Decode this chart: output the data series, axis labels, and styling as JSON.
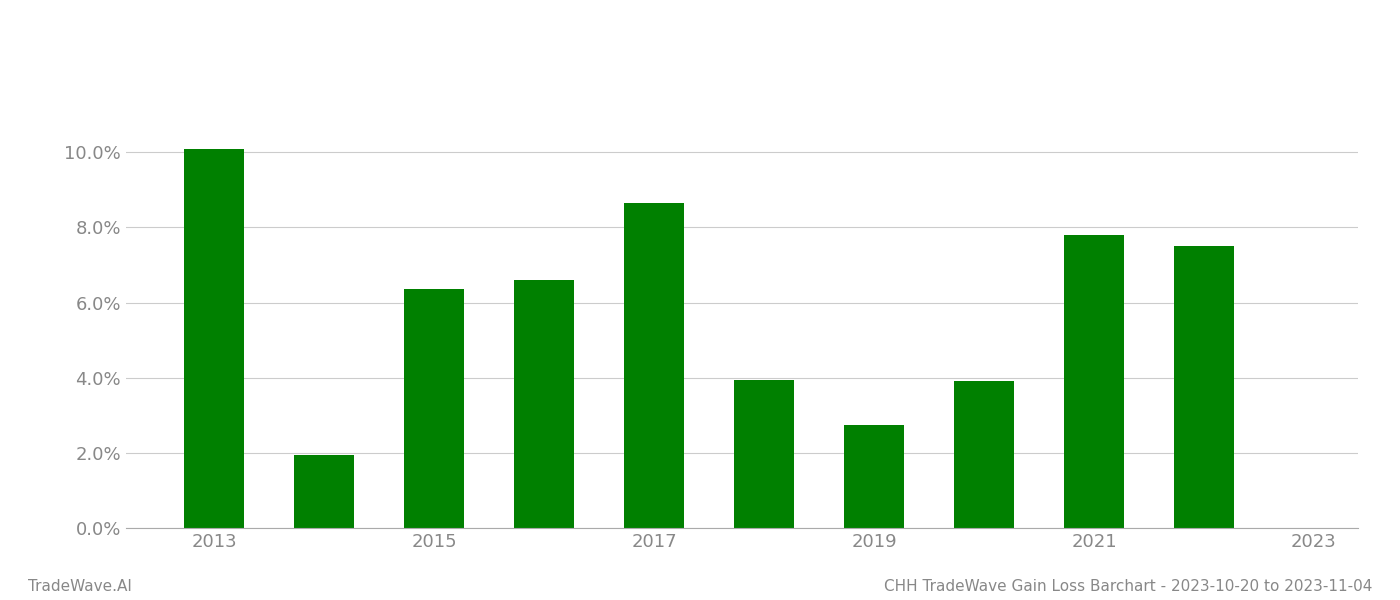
{
  "years": [
    2013,
    2014,
    2015,
    2016,
    2017,
    2018,
    2019,
    2020,
    2021,
    2022
  ],
  "values": [
    0.101,
    0.0195,
    0.0635,
    0.066,
    0.0865,
    0.0395,
    0.0275,
    0.039,
    0.078,
    0.075
  ],
  "bar_color": "#008000",
  "background_color": "#ffffff",
  "grid_color": "#cccccc",
  "axis_label_color": "#888888",
  "yticks": [
    0.0,
    0.02,
    0.04,
    0.06,
    0.08,
    0.1
  ],
  "ytick_labels": [
    "0.0%",
    "2.0%",
    "4.0%",
    "6.0%",
    "8.0%",
    "10.0%"
  ],
  "xtick_positions": [
    2013,
    2015,
    2017,
    2019,
    2021,
    2023
  ],
  "xtick_labels": [
    "2013",
    "2015",
    "2017",
    "2019",
    "2021",
    "2023"
  ],
  "ylim": [
    0,
    0.115
  ],
  "xlim": [
    2012.2,
    2023.4
  ],
  "footer_left": "TradeWave.AI",
  "footer_right": "CHH TradeWave Gain Loss Barchart - 2023-10-20 to 2023-11-04",
  "footer_color": "#888888",
  "footer_fontsize": 11,
  "bar_width": 0.55,
  "tick_fontsize": 13,
  "spine_color": "#aaaaaa"
}
